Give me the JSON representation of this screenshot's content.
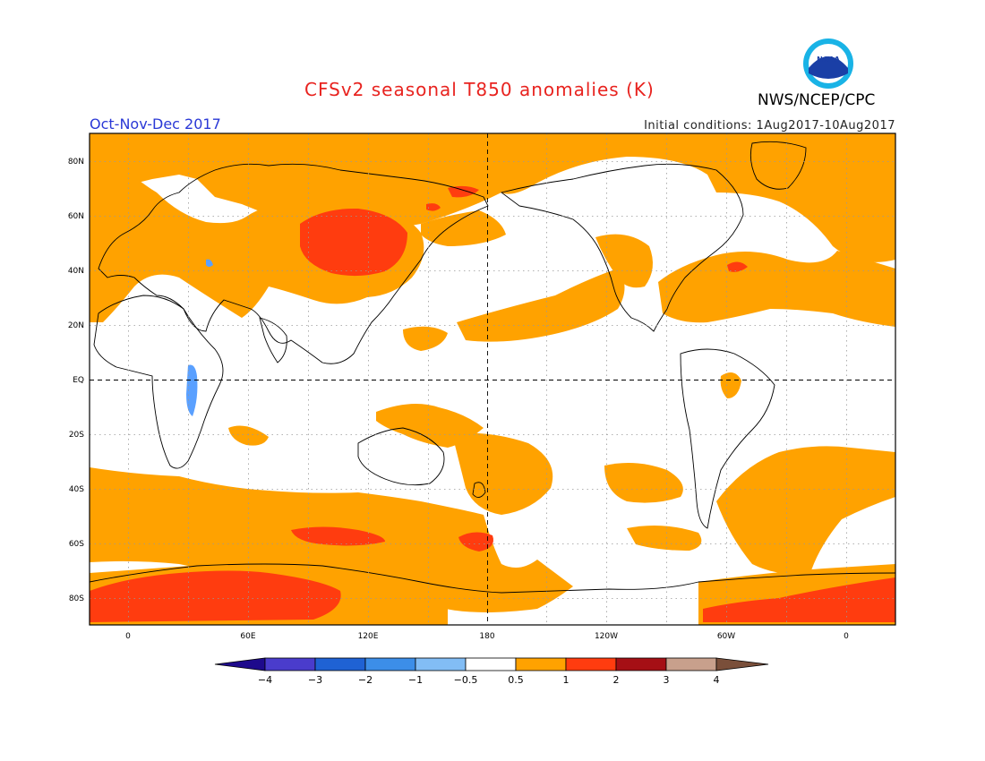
{
  "header": {
    "title": "CFSv2 seasonal T850 anomalies (K)",
    "agency": "NWS/NCEP/CPC",
    "season": "Oct-Nov-Dec 2017",
    "initial_conditions": "Initial conditions: 1Aug2017-10Aug2017",
    "logo_text": "NOAA"
  },
  "map": {
    "lat_labels": [
      "80N",
      "60N",
      "40N",
      "20N",
      "EQ",
      "20S",
      "40S",
      "60S",
      "80S"
    ],
    "lon_labels": [
      "0",
      "60E",
      "120E",
      "180",
      "120W",
      "60W",
      "0"
    ],
    "colors": {
      "warm_1": "#ffa200",
      "warm_2": "#ff3c0f",
      "cool_1": "#5aa0ff",
      "land_line": "#000000"
    }
  },
  "colorbar": {
    "labels": [
      "−4",
      "−3",
      "−2",
      "−1",
      "−0.5",
      "0.5",
      "1",
      "2",
      "3",
      "4"
    ],
    "colors": [
      "#1e0a8c",
      "#4a3ccc",
      "#1f62d4",
      "#3c8ee8",
      "#82bdf5",
      "#ffffff",
      "#ffa200",
      "#ff3c0f",
      "#a50f15",
      "#c8a08c",
      "#7a4f3a"
    ]
  }
}
